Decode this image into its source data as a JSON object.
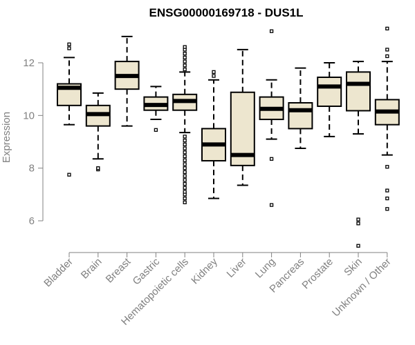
{
  "chart_data": {
    "type": "boxplot",
    "title": "ENSG00000169718 - DUS1L",
    "xlabel": "",
    "ylabel": "Expression",
    "ylim": [
      4.8,
      13.5
    ],
    "yticks": [
      6,
      8,
      10,
      12
    ],
    "grid": false,
    "legend": "none",
    "colors": {
      "box_fill": "#ede6cf",
      "stroke": "#000000",
      "axis_text": "#808080"
    },
    "categories": [
      "Bladder",
      "Brain",
      "Breast",
      "Gastric",
      "Hematopoietic cells",
      "Kidney",
      "Liver",
      "Lung",
      "Pancreas",
      "Prostate",
      "Skin",
      "Unknown / Other"
    ],
    "boxes": [
      {
        "category": "Bladder",
        "whisker_low": 9.65,
        "q1": 10.38,
        "median": 11.05,
        "q3": 11.2,
        "whisker_high": 12.2,
        "outliers": [
          7.75,
          12.55,
          12.7
        ]
      },
      {
        "category": "Brain",
        "whisker_low": 8.35,
        "q1": 9.6,
        "median": 10.05,
        "q3": 10.38,
        "whisker_high": 10.85,
        "outliers": [
          7.95,
          8.0
        ]
      },
      {
        "category": "Breast",
        "whisker_low": 9.6,
        "q1": 11.0,
        "median": 11.5,
        "q3": 12.05,
        "whisker_high": 13.0,
        "outliers": []
      },
      {
        "category": "Gastric",
        "whisker_low": 9.85,
        "q1": 10.2,
        "median": 10.4,
        "q3": 10.7,
        "whisker_high": 11.1,
        "outliers": [
          9.45
        ]
      },
      {
        "category": "Hematopoietic cells",
        "whisker_low": 9.35,
        "q1": 10.2,
        "median": 10.55,
        "q3": 10.8,
        "whisker_high": 11.65,
        "outliers": [
          6.7,
          6.85,
          7.0,
          7.1,
          7.25,
          7.4,
          7.55,
          7.7,
          7.85,
          8.0,
          8.15,
          8.3,
          8.45,
          8.6,
          8.75,
          8.9,
          9.05,
          9.2,
          11.75,
          11.9,
          12.05,
          12.2,
          12.35,
          12.5,
          12.6
        ]
      },
      {
        "category": "Kidney",
        "whisker_low": 6.85,
        "q1": 8.28,
        "median": 8.9,
        "q3": 9.5,
        "whisker_high": 11.35,
        "outliers": [
          11.5,
          11.65
        ]
      },
      {
        "category": "Liver",
        "whisker_low": 7.35,
        "q1": 8.1,
        "median": 8.5,
        "q3": 10.88,
        "whisker_high": 12.5,
        "outliers": []
      },
      {
        "category": "Lung",
        "whisker_low": 9.1,
        "q1": 9.85,
        "median": 10.25,
        "q3": 10.7,
        "whisker_high": 11.35,
        "outliers": [
          6.6,
          8.35,
          13.2
        ]
      },
      {
        "category": "Pancreas",
        "whisker_low": 8.75,
        "q1": 9.5,
        "median": 10.2,
        "q3": 10.48,
        "whisker_high": 11.8,
        "outliers": []
      },
      {
        "category": "Prostate",
        "whisker_low": 9.2,
        "q1": 10.35,
        "median": 11.1,
        "q3": 11.45,
        "whisker_high": 12.0,
        "outliers": []
      },
      {
        "category": "Skin",
        "whisker_low": 9.3,
        "q1": 10.18,
        "median": 11.2,
        "q3": 11.65,
        "whisker_high": 12.05,
        "outliers": [
          5.05,
          5.9,
          6.05
        ]
      },
      {
        "category": "Unknown / Other",
        "whisker_low": 8.5,
        "q1": 9.65,
        "median": 10.15,
        "q3": 10.6,
        "whisker_high": 12.05,
        "outliers": [
          6.45,
          6.85,
          7.15,
          8.05,
          12.25,
          12.5,
          13.3
        ]
      }
    ]
  }
}
